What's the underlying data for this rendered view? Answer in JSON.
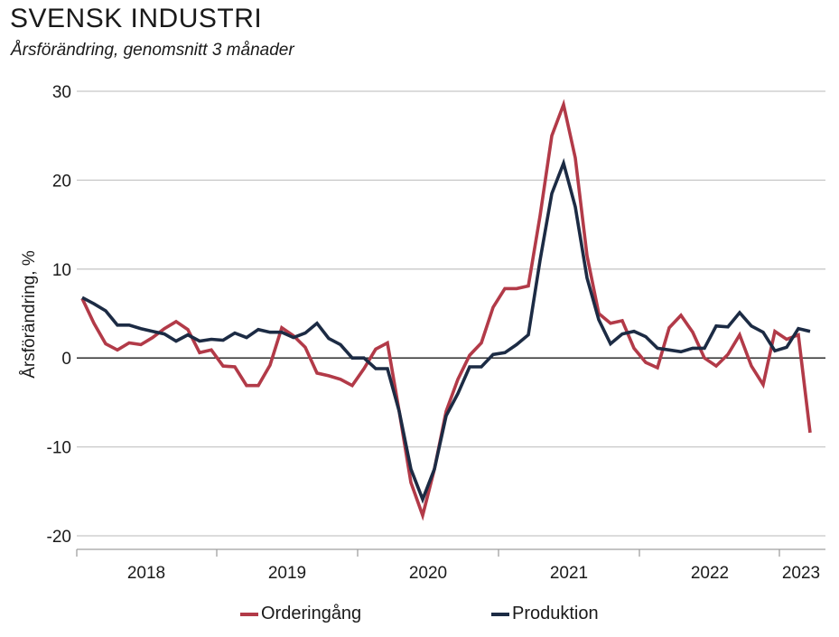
{
  "header": {
    "title": "SVENSK INDUSTRI",
    "subtitle": "Årsförändring, genomsnitt 3 månader"
  },
  "colors": {
    "orderingang": "#b23a48",
    "produktion": "#1c2b44",
    "grid": "#c8c8c8",
    "zero_line": "#1a1a1a"
  },
  "chart_data": {
    "type": "line",
    "title": "SVENSK INDUSTRI",
    "subtitle": "Årsförändring, genomsnitt 3 månader",
    "xlabel": "",
    "ylabel": "Årsförändring, %",
    "ylim": [
      -20,
      30
    ],
    "yticks": [
      30,
      20,
      10,
      0,
      -10,
      -20
    ],
    "ytick_labels": [
      "30",
      "20",
      "10",
      "0",
      "-10",
      "-20"
    ],
    "x_start": "2018-01",
    "x_frequency": "monthly",
    "xtick_labels": [
      "2018",
      "2019",
      "2020",
      "2021",
      "2022",
      "2023"
    ],
    "grid": true,
    "legend_position": "bottom",
    "series": [
      {
        "name": "Orderingång",
        "color": "#b23a48",
        "values": [
          6.7,
          3.9,
          1.6,
          0.9,
          1.7,
          1.5,
          2.3,
          3.3,
          4.1,
          3.2,
          0.6,
          0.9,
          -0.9,
          -1.0,
          -3.1,
          -3.1,
          -0.8,
          3.4,
          2.5,
          1.2,
          -1.7,
          -2.0,
          -2.4,
          -3.1,
          -1.2,
          1.0,
          1.7,
          -6.0,
          -14.0,
          -17.7,
          -12.5,
          -6.0,
          -2.4,
          0.3,
          1.7,
          5.7,
          7.8,
          7.8,
          8.1,
          16.0,
          25.0,
          28.5,
          22.5,
          11.5,
          5.0,
          3.9,
          4.2,
          1.1,
          -0.5,
          -1.1,
          3.4,
          4.8,
          2.9,
          0.0,
          -0.9,
          0.4,
          2.6,
          -0.9,
          -3.0,
          3.0,
          2.1,
          2.6,
          -8.4
        ]
      },
      {
        "name": "Produktion",
        "color": "#1c2b44",
        "values": [
          6.8,
          6.1,
          5.3,
          3.7,
          3.7,
          3.3,
          3.0,
          2.7,
          1.9,
          2.6,
          1.9,
          2.1,
          2.0,
          2.8,
          2.3,
          3.2,
          2.9,
          2.9,
          2.3,
          2.8,
          3.9,
          2.2,
          1.5,
          0.0,
          0.0,
          -1.2,
          -1.2,
          -6.0,
          -12.5,
          -15.9,
          -12.5,
          -6.5,
          -4.0,
          -1.0,
          -1.0,
          0.4,
          0.6,
          1.5,
          2.6,
          11.0,
          18.5,
          21.9,
          17.0,
          9.0,
          4.3,
          1.6,
          2.7,
          3.0,
          2.4,
          1.1,
          0.9,
          0.7,
          1.1,
          1.1,
          3.6,
          3.5,
          5.1,
          3.6,
          2.9,
          0.8,
          1.2,
          3.3,
          3.0
        ]
      }
    ]
  },
  "legend": {
    "items": [
      {
        "label": "Orderingång",
        "color": "#b23a48"
      },
      {
        "label": "Produktion",
        "color": "#1c2b44"
      }
    ]
  }
}
